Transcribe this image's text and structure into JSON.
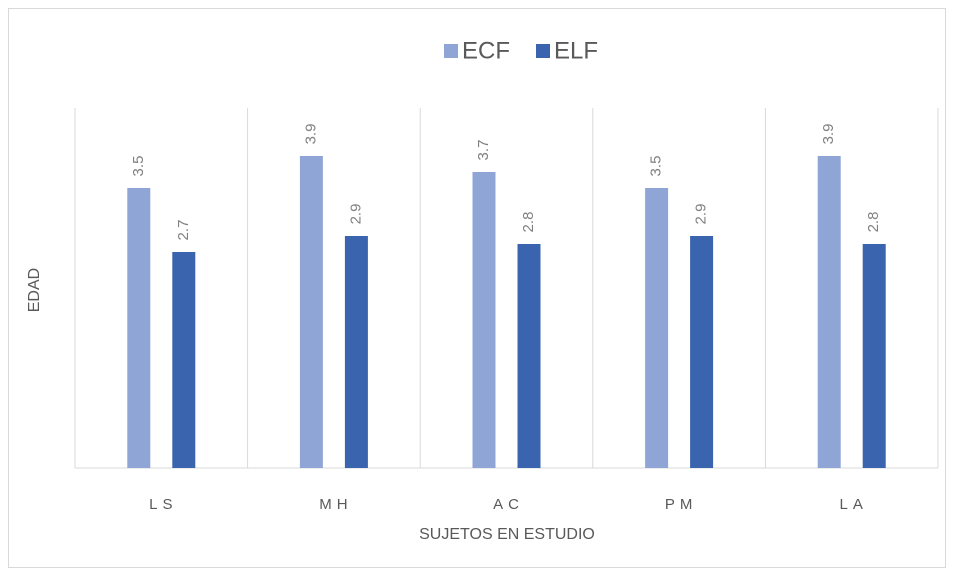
{
  "chart_data": {
    "type": "bar",
    "categories": [
      "LS",
      "MH",
      "AC",
      "PM",
      "LA"
    ],
    "series": [
      {
        "name": "ECF",
        "color": "#8fa5d6",
        "values": [
          3.5,
          3.9,
          3.7,
          3.5,
          3.9
        ]
      },
      {
        "name": "ELF",
        "color": "#3a64ad",
        "values": [
          2.7,
          2.9,
          2.8,
          2.9,
          2.8
        ]
      }
    ],
    "ylim": [
      0,
      4.5
    ],
    "x_label": "SUJETOS EN ESTUDIO",
    "y_label": "EDAD",
    "legend": "top"
  }
}
